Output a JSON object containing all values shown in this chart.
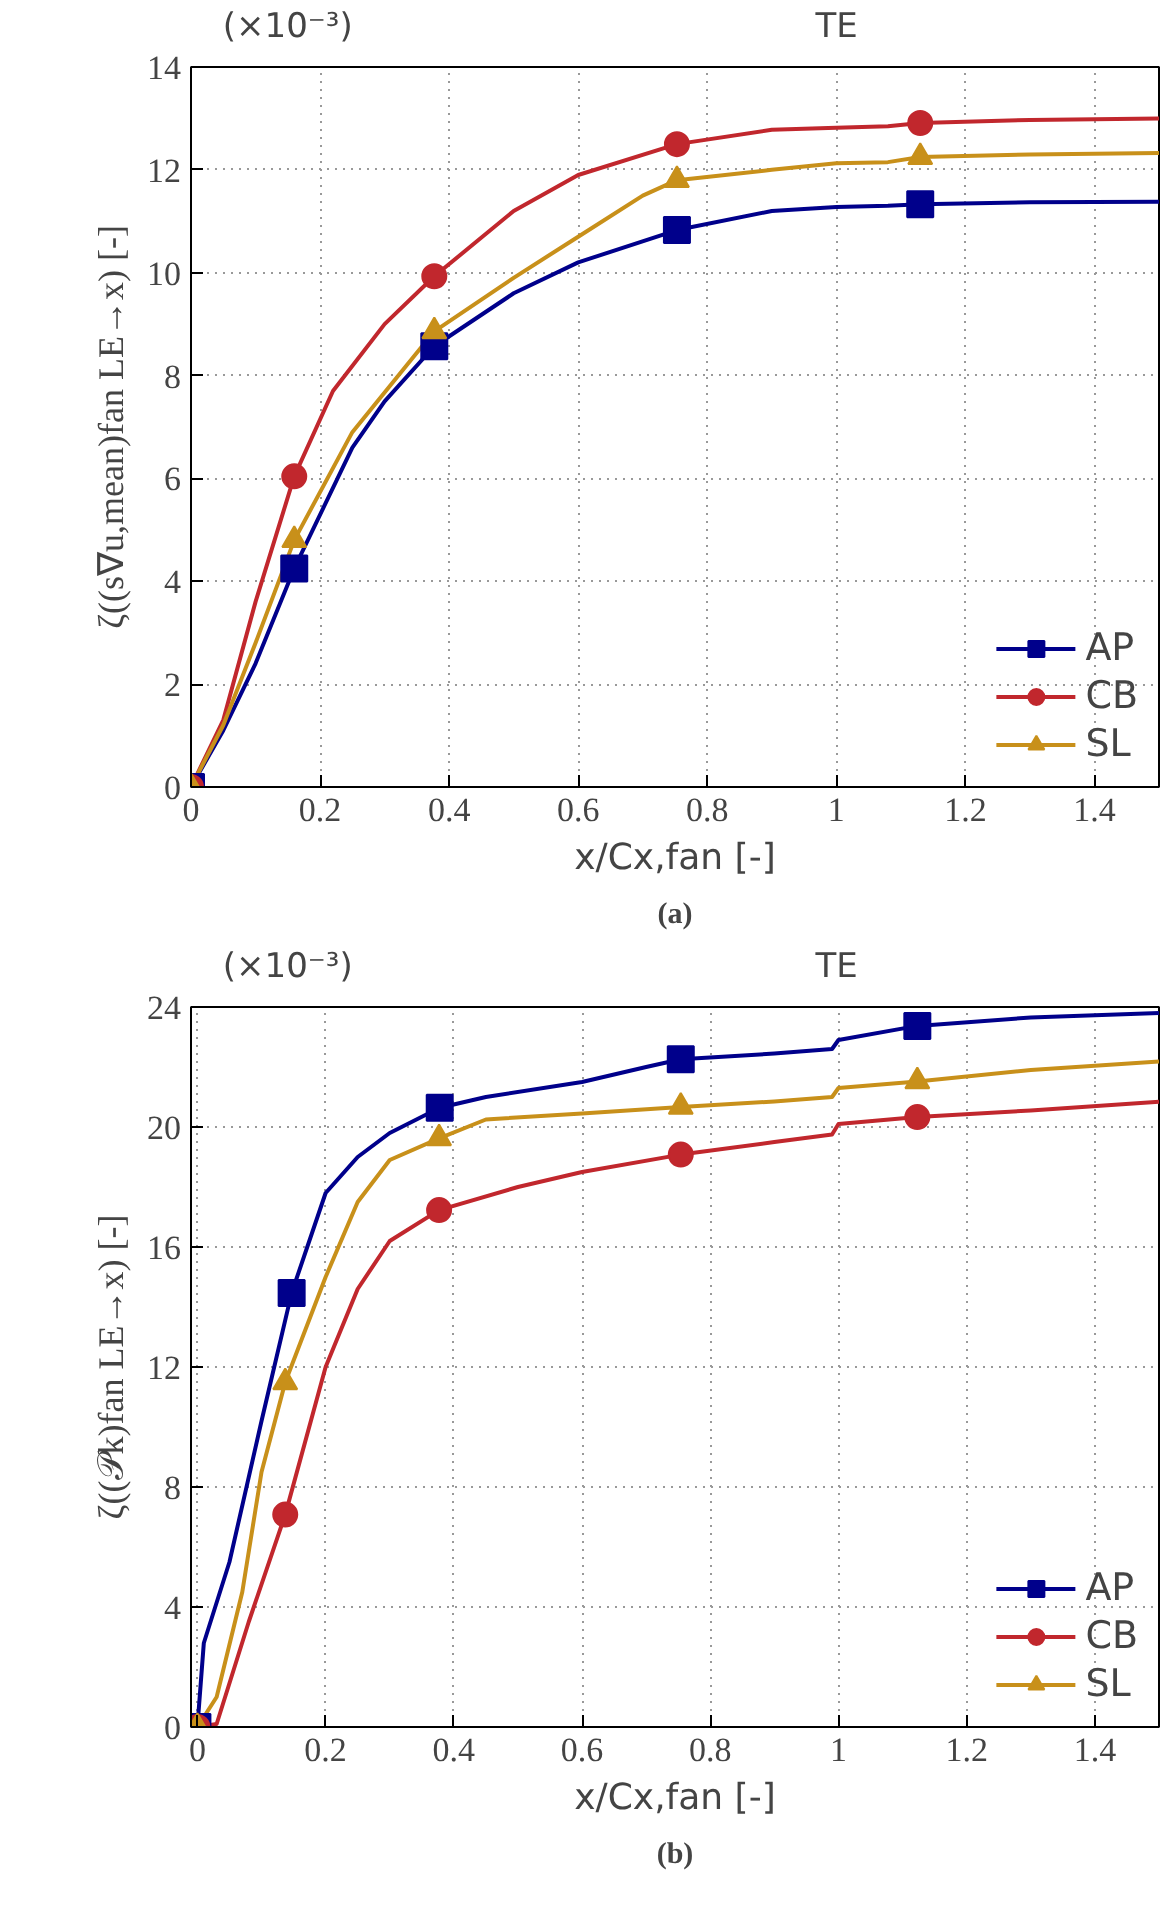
{
  "chart_data": [
    {
      "type": "line",
      "xlabel": "x/Cx,fan [-]",
      "ylabel": "ζ((s∇u,mean)fan LE→x) [-]",
      "annotations": [
        "(×10⁻³)",
        "TE",
        "(a)"
      ],
      "xlim": [
        0,
        1.5
      ],
      "ylim": [
        0,
        14
      ],
      "xticks": [
        0,
        0.2,
        0.4,
        0.6,
        0.8,
        1,
        1.2,
        1.4
      ],
      "yticks": [
        0,
        2,
        4,
        6,
        8,
        10,
        12,
        14
      ],
      "grid": true,
      "legend": "bottom right",
      "line_style": "solid",
      "series": [
        {
          "color": "#00008b",
          "x": [
            0,
            0.05,
            0.1,
            0.16,
            0.25,
            0.3,
            0.377,
            0.5,
            0.6,
            0.753,
            0.9,
            1.0,
            1.08,
            1.13,
            1.3,
            1.5
          ],
          "values": [
            0,
            1.1,
            2.4,
            4.25,
            6.6,
            7.5,
            8.57,
            9.6,
            10.2,
            10.83,
            11.2,
            11.28,
            11.3,
            11.33,
            11.37,
            11.38
          ]
        },
        {
          "color": "#c1272d",
          "x": [
            0,
            0.05,
            0.1,
            0.16,
            0.22,
            0.3,
            0.377,
            0.5,
            0.6,
            0.753,
            0.9,
            1.0,
            1.08,
            1.13,
            1.3,
            1.5
          ],
          "values": [
            0,
            1.3,
            3.6,
            6.04,
            7.7,
            9.0,
            9.93,
            11.2,
            11.9,
            12.5,
            12.78,
            12.82,
            12.85,
            12.91,
            12.97,
            13.0
          ]
        },
        {
          "color": "#c8901a",
          "x": [
            0,
            0.05,
            0.1,
            0.16,
            0.25,
            0.377,
            0.5,
            0.6,
            0.7,
            0.753,
            0.9,
            1.0,
            1.08,
            1.13,
            1.3,
            1.5
          ],
          "values": [
            0,
            1.2,
            2.8,
            4.8,
            6.9,
            8.86,
            9.9,
            10.7,
            11.5,
            11.8,
            12.0,
            12.13,
            12.15,
            12.25,
            12.3,
            12.33
          ]
        },
        {
          "type": "scatter",
          "name": "AP",
          "marker": "square",
          "color": "#00008b",
          "x": [
            0,
            0.16,
            0.377,
            0.753,
            1.13
          ],
          "values": [
            0,
            4.25,
            8.57,
            10.83,
            11.33
          ]
        },
        {
          "type": "scatter",
          "name": "CB",
          "marker": "circle",
          "color": "#c1272d",
          "x": [
            0,
            0.16,
            0.377,
            0.753,
            1.13
          ],
          "values": [
            0,
            6.04,
            9.93,
            12.5,
            12.91
          ]
        },
        {
          "type": "scatter",
          "name": "SL",
          "marker": "triangle",
          "color": "#c8901a",
          "x": [
            0,
            0.16,
            0.377,
            0.753,
            1.13
          ],
          "values": [
            0,
            4.8,
            8.86,
            11.8,
            12.25
          ]
        }
      ]
    },
    {
      "type": "line",
      "xlabel": "x/Cx,fan [-]",
      "ylabel": "ζ((𝒫k)fan LE→x) [-]",
      "annotations": [
        "(×10⁻³)",
        "TE",
        "(b)"
      ],
      "xlim": [
        -0.01,
        1.5
      ],
      "ylim": [
        0,
        24
      ],
      "xticks": [
        0,
        0.2,
        0.4,
        0.6,
        0.8,
        1,
        1.2,
        1.4
      ],
      "yticks": [
        0,
        4,
        8,
        12,
        16,
        20,
        24
      ],
      "grid": true,
      "legend": "bottom right",
      "line_style": "solid",
      "series": [
        {
          "color": "#00008b",
          "x": [
            0,
            0.01,
            0.05,
            0.1,
            0.147,
            0.2,
            0.25,
            0.3,
            0.378,
            0.45,
            0.6,
            0.7,
            0.754,
            0.9,
            0.99,
            1.0,
            1.123,
            1.3,
            1.5
          ],
          "values": [
            0,
            2.8,
            5.5,
            10.2,
            14.47,
            17.8,
            19.0,
            19.8,
            20.64,
            21.0,
            21.5,
            22.0,
            22.26,
            22.45,
            22.6,
            22.9,
            23.37,
            23.65,
            23.8
          ]
        },
        {
          "color": "#c1272d",
          "x": [
            0,
            0.03,
            0.08,
            0.137,
            0.2,
            0.25,
            0.3,
            0.377,
            0.5,
            0.6,
            0.754,
            0.9,
            0.99,
            1.0,
            1.123,
            1.3,
            1.5
          ],
          "values": [
            0,
            0.1,
            3.5,
            7.08,
            12.0,
            14.6,
            16.2,
            17.23,
            18.0,
            18.5,
            19.08,
            19.5,
            19.75,
            20.1,
            20.33,
            20.55,
            20.84
          ]
        },
        {
          "color": "#c8901a",
          "x": [
            0,
            0.03,
            0.07,
            0.1,
            0.137,
            0.2,
            0.25,
            0.3,
            0.377,
            0.45,
            0.6,
            0.754,
            0.9,
            0.99,
            1.0,
            1.123,
            1.3,
            1.5
          ],
          "values": [
            0,
            1.0,
            4.5,
            8.5,
            11.49,
            15.0,
            17.5,
            18.9,
            19.62,
            20.25,
            20.45,
            20.67,
            20.85,
            21.0,
            21.3,
            21.52,
            21.9,
            22.18
          ]
        },
        {
          "type": "scatter",
          "name": "AP",
          "marker": "square",
          "color": "#00008b",
          "x": [
            0,
            0.147,
            0.378,
            0.754,
            1.123
          ],
          "values": [
            0,
            14.47,
            20.64,
            22.26,
            23.37
          ]
        },
        {
          "type": "scatter",
          "name": "CB",
          "marker": "circle",
          "color": "#c1272d",
          "x": [
            0,
            0.137,
            0.377,
            0.754,
            1.123
          ],
          "values": [
            0,
            7.08,
            17.23,
            19.08,
            20.33
          ]
        },
        {
          "type": "scatter",
          "name": "SL",
          "marker": "triangle",
          "color": "#c8901a",
          "x": [
            0,
            0.137,
            0.377,
            0.754,
            1.123
          ],
          "values": [
            0,
            11.49,
            19.62,
            20.67,
            21.52
          ]
        }
      ]
    }
  ]
}
